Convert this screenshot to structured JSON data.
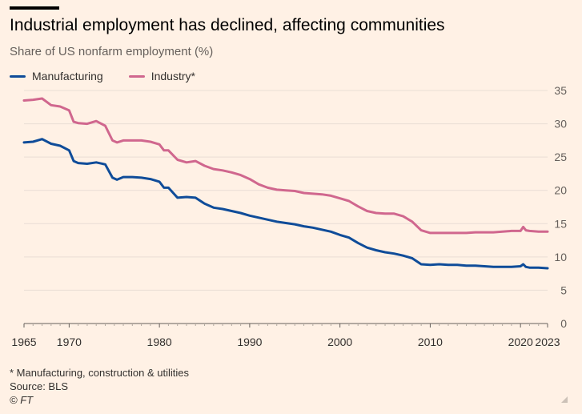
{
  "title": "Industrial employment has declined, affecting communities",
  "subtitle": "Share of US nonfarm employment (%)",
  "footnote": "* Manufacturing, construction & utilities",
  "source": "Source: BLS",
  "credit": "© FT",
  "colors": {
    "background": "#FFF1E5",
    "manufacturing": "#0F4C99",
    "industry": "#D0678E",
    "grid": "#E9DED5"
  },
  "icons": {
    "resize": "resize-corner-icon"
  },
  "chart_data": {
    "type": "line",
    "title": "Industrial employment has declined, affecting communities",
    "ylabel": "Share of US nonfarm employment (%)",
    "xlim": [
      1965,
      2023
    ],
    "ylim": [
      0,
      35
    ],
    "yticks": [
      0,
      5,
      10,
      15,
      20,
      25,
      30,
      35
    ],
    "xticks": [
      1965,
      1970,
      1980,
      1990,
      2000,
      2010,
      2020,
      2023
    ],
    "legend": "top-left",
    "grid": true,
    "series": [
      {
        "name": "Manufacturing",
        "x": [
          1965,
          1966,
          1967,
          1968,
          1969,
          1970,
          1970.5,
          1971,
          1972,
          1973,
          1974,
          1974.8,
          1975.3,
          1976,
          1977,
          1978,
          1979,
          1980,
          1980.5,
          1981,
          1982,
          1983,
          1984,
          1985,
          1986,
          1987,
          1988,
          1989,
          1990,
          1991,
          1992,
          1993,
          1994,
          1995,
          1996,
          1997,
          1998,
          1999,
          2000,
          2001,
          2002,
          2003,
          2004,
          2005,
          2006,
          2007,
          2008,
          2009,
          2010,
          2011,
          2012,
          2013,
          2014,
          2015,
          2016,
          2017,
          2018,
          2019,
          2020,
          2020.3,
          2020.6,
          2021,
          2022,
          2023
        ],
        "values": [
          27.2,
          27.3,
          27.7,
          27.0,
          26.7,
          26.0,
          24.4,
          24.1,
          24.0,
          24.2,
          23.9,
          21.9,
          21.6,
          22.0,
          22.0,
          21.9,
          21.7,
          21.3,
          20.4,
          20.4,
          18.9,
          19.0,
          18.9,
          18.0,
          17.4,
          17.2,
          16.9,
          16.6,
          16.2,
          15.9,
          15.6,
          15.3,
          15.1,
          14.9,
          14.6,
          14.4,
          14.1,
          13.8,
          13.3,
          12.9,
          12.1,
          11.4,
          11.0,
          10.7,
          10.5,
          10.2,
          9.8,
          8.9,
          8.8,
          8.9,
          8.8,
          8.8,
          8.7,
          8.7,
          8.6,
          8.5,
          8.5,
          8.5,
          8.6,
          8.9,
          8.5,
          8.4,
          8.4,
          8.3
        ]
      },
      {
        "name": "Industry*",
        "x": [
          1965,
          1966,
          1967,
          1968,
          1969,
          1970,
          1970.5,
          1971,
          1972,
          1973,
          1974,
          1974.8,
          1975.3,
          1976,
          1977,
          1978,
          1979,
          1980,
          1980.5,
          1981,
          1982,
          1983,
          1984,
          1985,
          1986,
          1987,
          1988,
          1989,
          1990,
          1991,
          1992,
          1993,
          1994,
          1995,
          1996,
          1997,
          1998,
          1999,
          2000,
          2001,
          2002,
          2003,
          2004,
          2005,
          2006,
          2007,
          2008,
          2009,
          2010,
          2011,
          2012,
          2013,
          2014,
          2015,
          2016,
          2017,
          2018,
          2019,
          2020,
          2020.3,
          2020.6,
          2021,
          2022,
          2023
        ],
        "values": [
          33.5,
          33.6,
          33.8,
          32.8,
          32.6,
          32.0,
          30.3,
          30.1,
          30.0,
          30.4,
          29.7,
          27.5,
          27.2,
          27.5,
          27.5,
          27.5,
          27.3,
          26.9,
          26.0,
          26.0,
          24.6,
          24.2,
          24.4,
          23.7,
          23.2,
          23.0,
          22.7,
          22.3,
          21.7,
          20.9,
          20.4,
          20.1,
          20.0,
          19.9,
          19.6,
          19.5,
          19.4,
          19.2,
          18.8,
          18.4,
          17.6,
          16.9,
          16.6,
          16.5,
          16.5,
          16.1,
          15.3,
          14.0,
          13.6,
          13.6,
          13.6,
          13.6,
          13.6,
          13.7,
          13.7,
          13.7,
          13.8,
          13.9,
          13.9,
          14.5,
          14.0,
          13.9,
          13.8,
          13.8
        ]
      }
    ]
  }
}
